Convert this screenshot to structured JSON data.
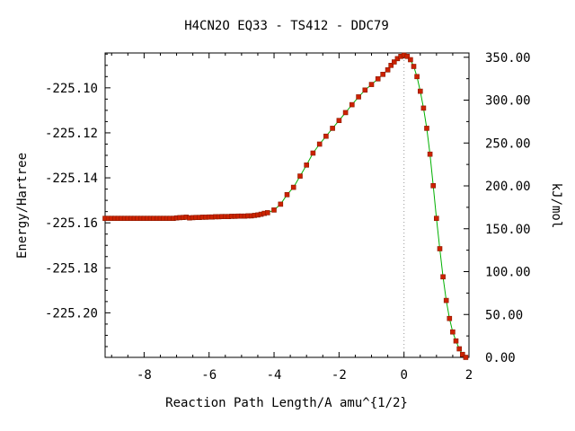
{
  "chart_data": {
    "type": "line",
    "title": "H4CN2O   EQ33 - TS412 - DDC79",
    "xlabel": "Reaction Path Length/A amu^{1/2}",
    "ylabel": "Energy/Hartree",
    "y2label": "kJ/mol",
    "xlim": [
      -9.2,
      2.0
    ],
    "ylim": [
      -225.2198,
      -225.0845
    ],
    "y2lim": [
      0.0,
      355.0
    ],
    "x_ticks": [
      -8,
      -6,
      -4,
      -2,
      0,
      2
    ],
    "x_tick_labels": [
      "-8",
      "-6",
      "-4",
      "-2",
      "0",
      "2"
    ],
    "y_ticks": [
      -225.1,
      -225.12,
      -225.14,
      -225.16,
      -225.18,
      -225.2
    ],
    "y_tick_labels": [
      "-225.10",
      "-225.12",
      "-225.14",
      "-225.16",
      "-225.18",
      "-225.20"
    ],
    "y2_ticks": [
      350,
      300,
      250,
      200,
      150,
      100,
      50,
      0
    ],
    "y2_tick_labels": [
      "350.00",
      "300.00",
      "250.00",
      "200.00",
      "150.00",
      "100.00",
      "50.00",
      "0.00"
    ],
    "ts_marker_x": 0,
    "grid": false,
    "colors": {
      "line": "#00b000",
      "marker_fill": "#cc2200",
      "marker_edge": "#8b1a00",
      "ts_line": "#999999"
    },
    "series": [
      {
        "x": [
          -9.2,
          -9.1,
          -9.0,
          -8.9,
          -8.8,
          -8.7,
          -8.6,
          -8.5,
          -8.4,
          -8.3,
          -8.2,
          -8.1,
          -8.0,
          -7.9,
          -7.8,
          -7.7,
          -7.6,
          -7.5,
          -7.4,
          -7.3,
          -7.2,
          -7.1,
          -7.0,
          -6.9,
          -6.8,
          -6.7,
          -6.6,
          -6.5,
          -6.4,
          -6.3,
          -6.2,
          -6.1,
          -6.0,
          -5.9,
          -5.8,
          -5.7,
          -5.6,
          -5.5,
          -5.4,
          -5.3,
          -5.2,
          -5.1,
          -5.0,
          -4.9,
          -4.8,
          -4.7,
          -4.6,
          -4.5,
          -4.4,
          -4.3,
          -4.2,
          -4.0,
          -3.8,
          -3.6,
          -3.4,
          -3.2,
          -3.0,
          -2.8,
          -2.6,
          -2.4,
          -2.2,
          -2.0,
          -1.8,
          -1.6,
          -1.4,
          -1.2,
          -1.0,
          -0.8,
          -0.65,
          -0.5,
          -0.4,
          -0.3,
          -0.2,
          -0.1,
          0.0,
          0.1,
          0.2,
          0.3,
          0.4,
          0.5,
          0.6,
          0.7,
          0.8,
          0.9,
          1.0,
          1.1,
          1.2,
          1.3,
          1.4,
          1.5,
          1.6,
          1.7,
          1.8,
          1.9
        ],
        "y": [
          -225.158,
          -225.158,
          -225.158,
          -225.158,
          -225.158,
          -225.158,
          -225.158,
          -225.158,
          -225.158,
          -225.158,
          -225.158,
          -225.158,
          -225.158,
          -225.158,
          -225.158,
          -225.158,
          -225.158,
          -225.158,
          -225.158,
          -225.158,
          -225.158,
          -225.158,
          -225.1578,
          -225.1577,
          -225.1576,
          -225.1575,
          -225.1578,
          -225.1577,
          -225.1576,
          -225.1576,
          -225.1575,
          -225.1575,
          -225.1574,
          -225.1574,
          -225.1573,
          -225.1573,
          -225.1572,
          -225.1572,
          -225.1572,
          -225.1571,
          -225.1571,
          -225.157,
          -225.157,
          -225.157,
          -225.1569,
          -225.1569,
          -225.1567,
          -225.1565,
          -225.1562,
          -225.1558,
          -225.1555,
          -225.1543,
          -225.1517,
          -225.1475,
          -225.1442,
          -225.1392,
          -225.1343,
          -225.129,
          -225.125,
          -225.1215,
          -225.118,
          -225.1145,
          -225.111,
          -225.1075,
          -225.104,
          -225.101,
          -225.0985,
          -225.096,
          -225.094,
          -225.092,
          -225.09,
          -225.0885,
          -225.087,
          -225.086,
          -225.0855,
          -225.086,
          -225.0875,
          -225.0905,
          -225.095,
          -225.1015,
          -225.109,
          -225.118,
          -225.1295,
          -225.1435,
          -225.158,
          -225.1715,
          -225.184,
          -225.1945,
          -225.2025,
          -225.2085,
          -225.2125,
          -225.216,
          -225.2185,
          -225.2198
        ]
      }
    ]
  }
}
